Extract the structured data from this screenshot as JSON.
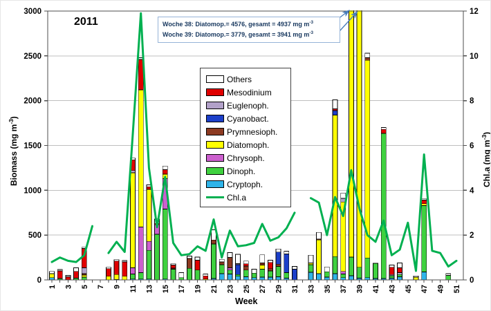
{
  "title": "2011",
  "x_axis_label": "Week",
  "left_axis": {
    "pre": "Biomass (mg m",
    "sup": "-3",
    "post": ")"
  },
  "right_axis": {
    "pre": "Chl.a (mg m",
    "sup": "-3",
    "post": ")"
  },
  "annotation": {
    "line1_pre": "Woche 38: Diatomop.= 4576, gesamt = 4937 mg m",
    "line1_sup": "-3",
    "line2_pre": "Woche 39: Diatomop.= 3779, gesamt = 3941 mg m",
    "line2_sup": "-3",
    "border_color": "#95B3D7",
    "text_color": "#17375E",
    "points_to_weeks": [
      38,
      39
    ]
  },
  "legend": {
    "items": [
      {
        "label": "Others",
        "type": "box",
        "color": "#FFFFFF"
      },
      {
        "label": "Mesodinium",
        "type": "box",
        "color": "#E00000"
      },
      {
        "label": "Euglenoph.",
        "type": "box",
        "color": "#B2A1C9"
      },
      {
        "label": "Cyanobact.",
        "type": "box",
        "color": "#1C3FC9"
      },
      {
        "label": "Prymnesioph.",
        "type": "box",
        "color": "#8C3A21"
      },
      {
        "label": "Diatomoph.",
        "type": "box",
        "color": "#FFFF00"
      },
      {
        "label": "Chrysoph.",
        "type": "box",
        "color": "#CC5FCE"
      },
      {
        "label": "Dinoph.",
        "type": "box",
        "color": "#3FD13F"
      },
      {
        "label": "Cryptoph.",
        "type": "box",
        "color": "#2FB4E9"
      },
      {
        "label": "Chl.a",
        "type": "line",
        "color": "#00B050"
      }
    ]
  },
  "chart_data": {
    "type": "bar",
    "stacked": true,
    "title": "2011",
    "xlabel": "Week",
    "ylabel_left": "Biomass (mg m-3)",
    "ylabel_right": "Chl.a (mg m-3)",
    "x_range": [
      1,
      52
    ],
    "y_left_range": [
      0,
      3000
    ],
    "y_right_range": [
      0,
      12
    ],
    "y_left_ticks": [
      0,
      500,
      1000,
      1500,
      2000,
      2500,
      3000
    ],
    "y_right_ticks": [
      0,
      2,
      4,
      6,
      8,
      10,
      12
    ],
    "x_tick_labels": [
      1,
      3,
      5,
      7,
      9,
      11,
      13,
      15,
      17,
      19,
      21,
      23,
      25,
      27,
      29,
      31,
      33,
      35,
      37,
      39,
      41,
      43,
      45,
      47,
      49,
      51
    ],
    "grid": "horizontal",
    "legend_position": "inside-center",
    "series": [
      {
        "name": "Cryptoph.",
        "color": "#2FB4E9",
        "values_by_week": {
          "1": 25,
          "9": 5,
          "11": 10,
          "12": 10,
          "13": 10,
          "15": 10,
          "21": 15,
          "22": 70,
          "23": 65,
          "24": 40,
          "25": 35,
          "26": 25,
          "27": 30,
          "28": 30,
          "29": 35,
          "30": 20,
          "33": 85,
          "34": 70,
          "35": 30,
          "36": 70,
          "37": 25,
          "38": 45,
          "39": 20,
          "40": 25,
          "41": 15,
          "42": 15,
          "43": 20,
          "44": 35,
          "47": 90
        }
      },
      {
        "name": "Dinoph.",
        "color": "#3FD13F",
        "values_by_week": {
          "2": 15,
          "4": 20,
          "5": 30,
          "11": 55,
          "12": 70,
          "13": 320,
          "14": 510,
          "15": 780,
          "16": 120,
          "17": 25,
          "18": 130,
          "19": 110,
          "21": 385,
          "22": 100,
          "23": 45,
          "24": 20,
          "25": 75,
          "26": 50,
          "27": 90,
          "28": 70,
          "29": 115,
          "30": 60,
          "33": 85,
          "35": 60,
          "36": 190,
          "37": 40,
          "38": 210,
          "39": 120,
          "40": 220,
          "41": 170,
          "42": 1620,
          "43": 25,
          "44": 25,
          "47": 740,
          "50": 50
        }
      },
      {
        "name": "Chrysoph.",
        "color": "#CC5FCE",
        "values_by_week": {
          "11": 70,
          "12": 510,
          "13": 100,
          "14": 105,
          "15": 340,
          "23": 25,
          "37": 30
        }
      },
      {
        "name": "Diatomoph.",
        "color": "#FFFF00",
        "values_by_week": {
          "1": 45,
          "5": 25,
          "8": 40,
          "9": 55,
          "10": 40,
          "11": 1060,
          "12": 1530,
          "13": 580,
          "15": 50,
          "20": 10,
          "27": 45,
          "33": 20,
          "34": 375,
          "36": 1580,
          "37": 775,
          "38": 4576,
          "39": 3779,
          "40": 2205,
          "46": 30,
          "47": 20
        }
      },
      {
        "name": "Prymnesioph.",
        "color": "#8C3A21",
        "values_by_week": {
          "5": 15,
          "16": 10,
          "18": 110,
          "21": 45,
          "22": 30,
          "23": 115,
          "25": 45,
          "27": 25,
          "28": 25,
          "29": 25,
          "34": 10,
          "40": 30
        }
      },
      {
        "name": "Cyanobact.",
        "color": "#1C3FC9",
        "values_by_week": {
          "24": 110,
          "29": 135,
          "30": 210,
          "31": 120,
          "36": 50
        }
      },
      {
        "name": "Euglenoph.",
        "color": "#B2A1C9",
        "values_by_week": {
          "5": 65,
          "11": 25,
          "24": 10,
          "37": 40,
          "43": 15,
          "44": 20
        }
      },
      {
        "name": "Mesodinium",
        "color": "#E00000",
        "values_by_week": {
          "2": 85,
          "3": 35,
          "4": 75,
          "5": 215,
          "8": 85,
          "9": 150,
          "10": 160,
          "11": 120,
          "12": 340,
          "13": 30,
          "14": 15,
          "15": 50,
          "16": 35,
          "19": 110,
          "20": 35,
          "25": 25,
          "28": 70,
          "36": 20,
          "42": 45,
          "43": 80,
          "44": 55,
          "47": 40
        }
      },
      {
        "name": "Others",
        "color": "#FFFFFF",
        "values_by_week": {
          "1": 25,
          "2": 15,
          "3": 15,
          "4": 40,
          "5": 15,
          "8": 15,
          "9": 15,
          "10": 15,
          "11": 20,
          "12": 20,
          "13": 20,
          "14": 50,
          "15": 40,
          "16": 15,
          "17": 55,
          "18": 25,
          "19": 35,
          "20": 20,
          "21": 115,
          "22": 30,
          "23": 55,
          "24": 105,
          "25": 30,
          "26": 45,
          "27": 90,
          "28": 25,
          "29": 35,
          "30": 30,
          "31": 30,
          "33": 85,
          "34": 75,
          "35": 55,
          "36": 100,
          "37": 60,
          "38": 106,
          "39": 22,
          "40": 50,
          "42": 20,
          "43": 25,
          "44": 55,
          "46": 15,
          "47": 15,
          "50": 20
        }
      }
    ],
    "line_series": {
      "name": "Chl.a",
      "color": "#00B050",
      "axis": "right",
      "values_by_week": {
        "1": 0.8,
        "2": 1.0,
        "3": 0.85,
        "4": 0.8,
        "5": 1.1,
        "6": 2.4,
        "8": 1.2,
        "9": 1.7,
        "10": 1.25,
        "11": 6.5,
        "12": 11.9,
        "13": 5.0,
        "14": 2.35,
        "15": 4.6,
        "16": 1.65,
        "17": 1.1,
        "18": 1.15,
        "19": 1.5,
        "20": 1.3,
        "21": 2.7,
        "22": 1.0,
        "23": 2.2,
        "24": 1.5,
        "25": 1.55,
        "26": 1.65,
        "27": 2.5,
        "28": 1.75,
        "29": 1.9,
        "30": 2.3,
        "31": 3.0,
        "33": 3.65,
        "34": 3.45,
        "35": 2.0,
        "36": 3.7,
        "37": 2.85,
        "38": 4.9,
        "39": 3.2,
        "40": 2.0,
        "41": 1.7,
        "42": 2.65,
        "43": 1.1,
        "44": 1.35,
        "45": 2.55,
        "46": 0.4,
        "47": 5.6,
        "48": 1.3,
        "49": 1.2,
        "50": 0.6,
        "51": 0.85
      }
    }
  },
  "colors": {
    "grid": "#BFBFBF",
    "frame": "#4D4D4D",
    "arrow": "#4A7EBB",
    "tick_text": "#000000"
  }
}
